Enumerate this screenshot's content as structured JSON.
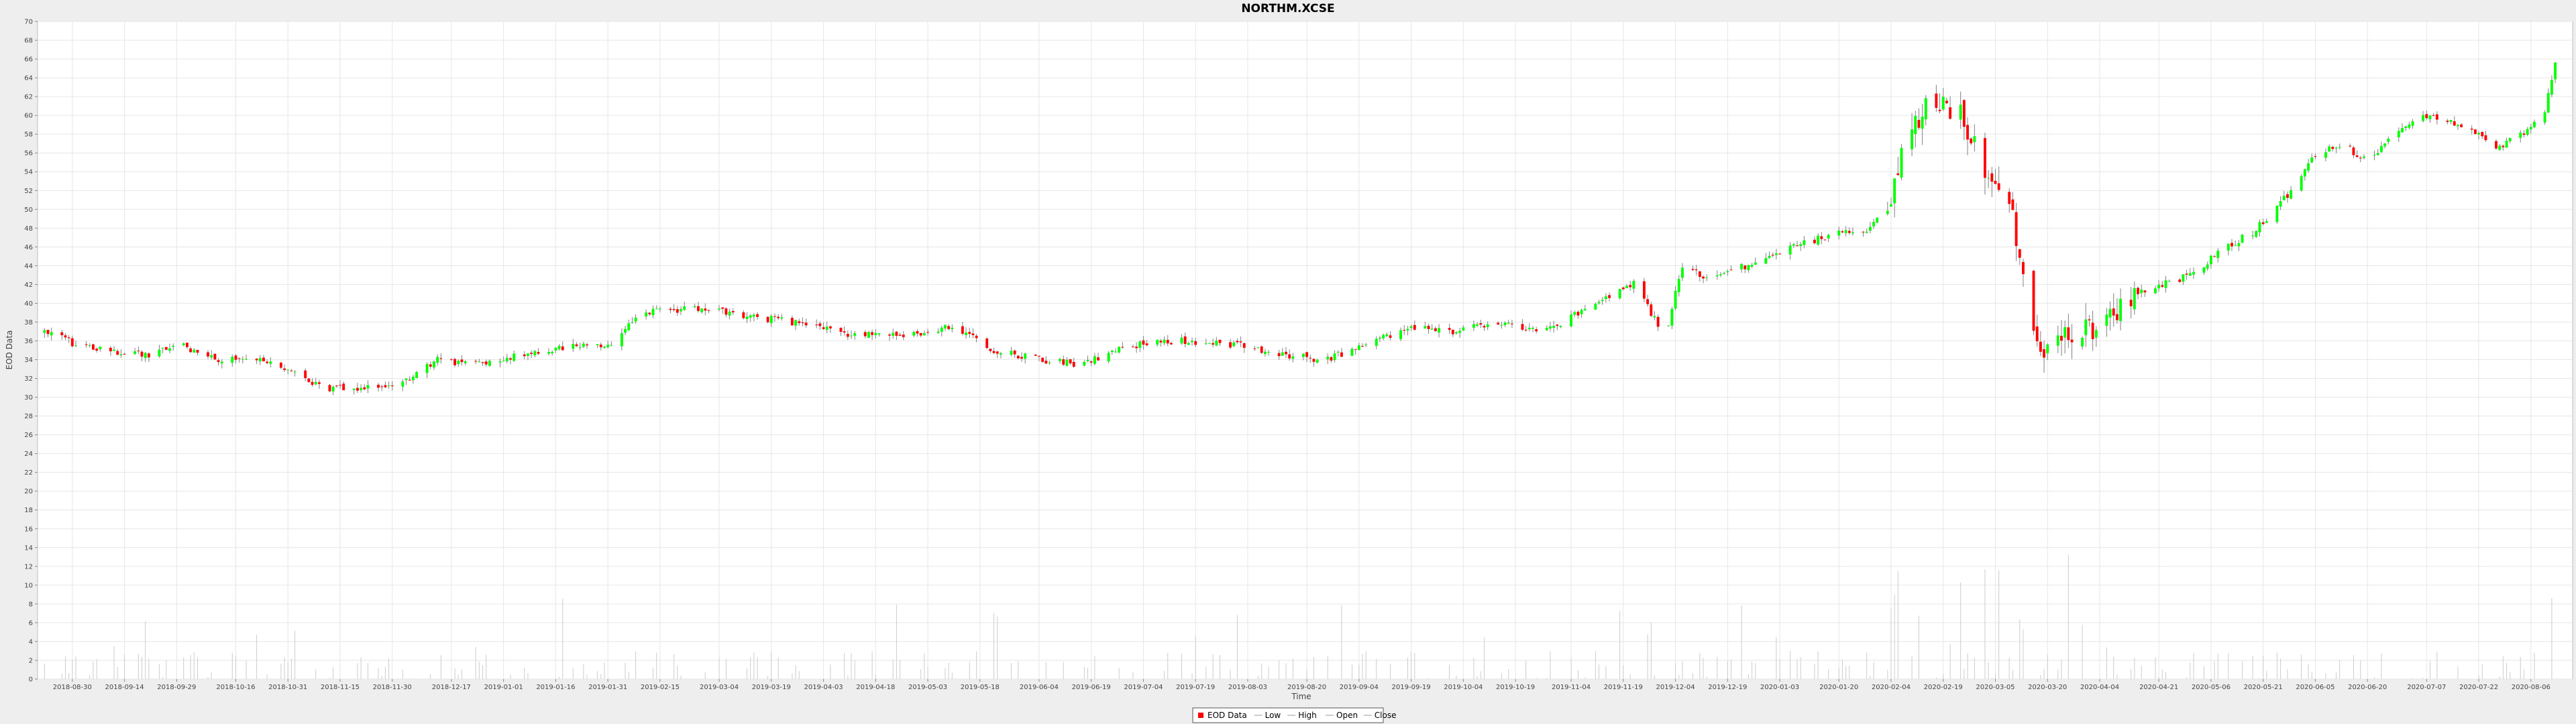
{
  "chart_data": {
    "type": "candlestick",
    "title": "NORTHM.XCSE",
    "xlabel": "Time",
    "ylabel": "EOD Data",
    "ylim": [
      0,
      70
    ],
    "y_ticks": [
      0,
      2,
      4,
      6,
      8,
      10,
      12,
      14,
      16,
      18,
      20,
      22,
      24,
      26,
      28,
      30,
      32,
      34,
      36,
      38,
      40,
      42,
      44,
      46,
      48,
      50,
      52,
      54,
      56,
      58,
      60,
      62,
      64,
      66,
      68,
      70
    ],
    "x_ticks": [
      "2018-08-30",
      "2018-09-14",
      "2018-09-29",
      "2018-10-16",
      "2018-10-31",
      "2018-11-15",
      "2018-11-30",
      "2018-12-17",
      "2019-01-01",
      "2019-01-16",
      "2019-01-31",
      "2019-02-15",
      "2019-03-04",
      "2019-03-19",
      "2019-04-03",
      "2019-04-18",
      "2019-05-03",
      "2019-05-18",
      "2019-06-04",
      "2019-06-19",
      "2019-07-04",
      "2019-07-19",
      "2019-08-03",
      "2019-08-20",
      "2019-09-04",
      "2019-09-19",
      "2019-10-04",
      "2019-10-19",
      "2019-11-04",
      "2019-11-19",
      "2019-12-04",
      "2019-12-19",
      "2020-01-03",
      "2020-01-20",
      "2020-02-04",
      "2020-02-19",
      "2020-03-05",
      "2020-03-20",
      "2020-04-04",
      "2020-04-21",
      "2020-05-06",
      "2020-05-21",
      "2020-06-05",
      "2020-06-20",
      "2020-07-07",
      "2020-07-22",
      "2020-08-06"
    ],
    "close_anchors": [
      [
        "2018-08-22",
        37.0
      ],
      [
        "2018-09-01",
        35.5
      ],
      [
        "2018-09-10",
        35.0
      ],
      [
        "2018-09-20",
        34.5
      ],
      [
        "2018-10-01",
        35.5
      ],
      [
        "2018-10-10",
        34.0
      ],
      [
        "2018-10-20",
        34.5
      ],
      [
        "2018-11-01",
        32.5
      ],
      [
        "2018-11-12",
        31.0
      ],
      [
        "2018-11-22",
        31.0
      ],
      [
        "2018-12-03",
        31.5
      ],
      [
        "2018-12-13",
        34.0
      ],
      [
        "2018-12-24",
        33.5
      ],
      [
        "2019-01-07",
        34.5
      ],
      [
        "2019-01-20",
        35.3
      ],
      [
        "2019-01-31",
        35.5
      ],
      [
        "2019-02-10",
        39.0
      ],
      [
        "2019-02-25",
        39.5
      ],
      [
        "2019-03-10",
        38.8
      ],
      [
        "2019-03-25",
        38.0
      ],
      [
        "2019-04-10",
        36.8
      ],
      [
        "2019-04-25",
        36.5
      ],
      [
        "2019-05-10",
        37.5
      ],
      [
        "2019-05-22",
        35.0
      ],
      [
        "2019-06-05",
        34.0
      ],
      [
        "2019-06-15",
        33.5
      ],
      [
        "2019-06-30",
        35.5
      ],
      [
        "2019-07-15",
        36.0
      ],
      [
        "2019-08-01",
        35.5
      ],
      [
        "2019-08-15",
        34.5
      ],
      [
        "2019-08-25",
        34.0
      ],
      [
        "2019-09-05",
        35.5
      ],
      [
        "2019-09-20",
        37.5
      ],
      [
        "2019-10-01",
        37.0
      ],
      [
        "2019-10-15",
        38.0
      ],
      [
        "2019-10-28",
        37.0
      ],
      [
        "2019-11-10",
        40.0
      ],
      [
        "2019-11-22",
        42.0
      ],
      [
        "2019-12-01",
        36.5
      ],
      [
        "2019-12-06",
        44.0
      ],
      [
        "2019-12-15",
        42.5
      ],
      [
        "2019-12-30",
        45.0
      ],
      [
        "2020-01-15",
        47.0
      ],
      [
        "2020-01-28",
        48.0
      ],
      [
        "2020-02-03",
        50.0
      ],
      [
        "2020-02-08",
        58.0
      ],
      [
        "2020-02-17",
        62.0
      ],
      [
        "2020-02-24",
        60.0
      ],
      [
        "2020-03-02",
        54.0
      ],
      [
        "2020-03-10",
        49.0
      ],
      [
        "2020-03-16",
        38.0
      ],
      [
        "2020-03-19",
        34.0
      ],
      [
        "2020-03-25",
        36.5
      ],
      [
        "2020-04-04",
        37.5
      ],
      [
        "2020-04-15",
        41.0
      ],
      [
        "2020-04-30",
        43.0
      ],
      [
        "2020-05-10",
        46.0
      ],
      [
        "2020-05-18",
        47.5
      ],
      [
        "2020-05-28",
        51.5
      ],
      [
        "2020-06-05",
        56.0
      ],
      [
        "2020-06-13",
        57.0
      ],
      [
        "2020-06-20",
        55.0
      ],
      [
        "2020-06-28",
        58.0
      ],
      [
        "2020-07-07",
        60.0
      ],
      [
        "2020-07-20",
        58.5
      ],
      [
        "2020-07-28",
        56.5
      ],
      [
        "2020-08-05",
        58.5
      ],
      [
        "2020-08-10",
        60.0
      ],
      [
        "2020-08-13",
        66.0
      ]
    ],
    "legend": {
      "placement": "bottom-center",
      "entries": [
        {
          "label": "EOD Data",
          "color": "#ff0000"
        },
        {
          "label": "Low",
          "color": "#9b9b9b"
        },
        {
          "label": "High",
          "color": "#9b9b9b"
        },
        {
          "label": "Open",
          "color": "#9b9b9b"
        },
        {
          "label": "Close",
          "color": "#9b9b9b"
        }
      ]
    },
    "up_color": "#00ff00",
    "down_color": "#ff0000",
    "wick_color": "#808080",
    "volume_color": "#cccccc",
    "grid": true
  }
}
